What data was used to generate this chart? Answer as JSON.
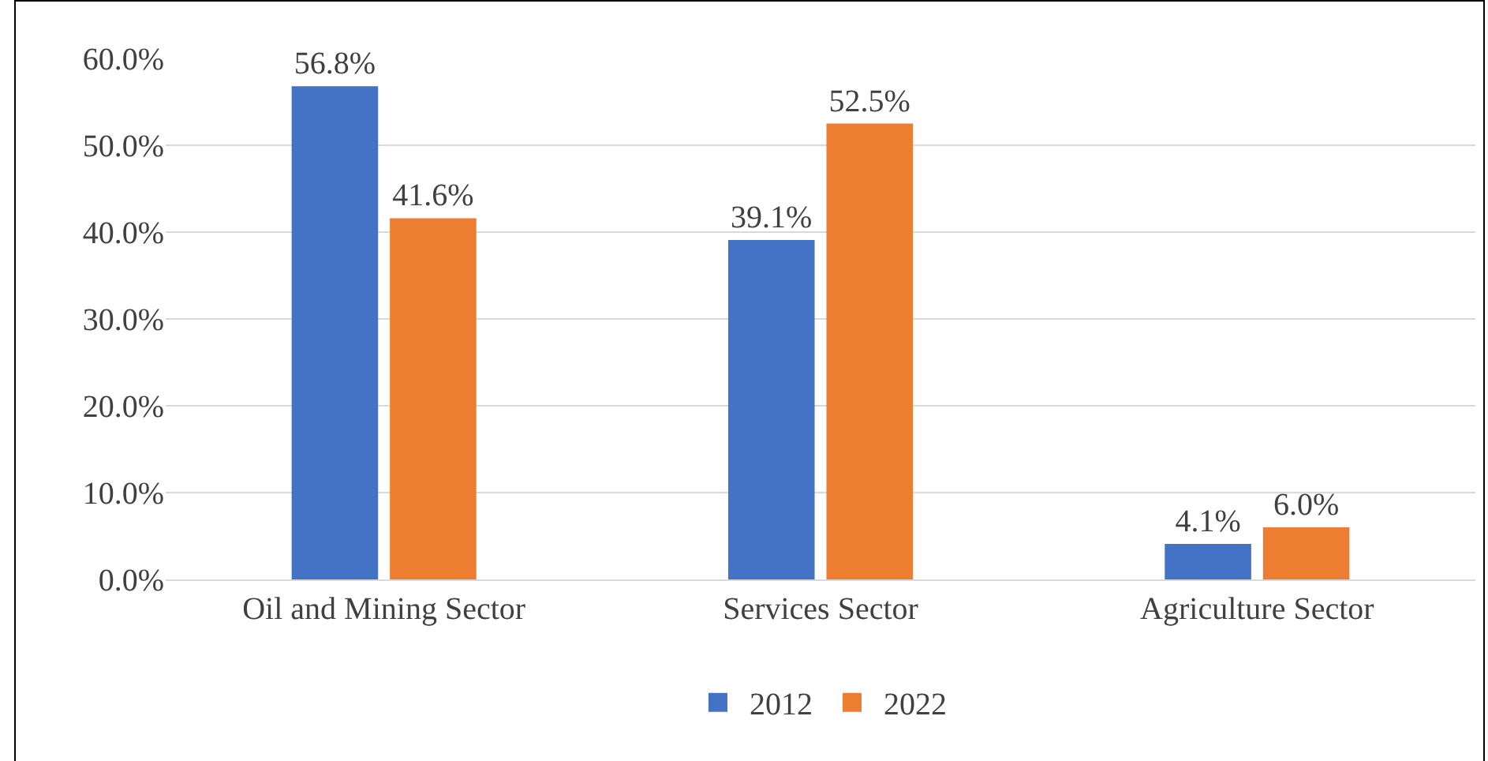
{
  "chart_data": {
    "type": "bar",
    "categories": [
      "Oil and Mining Sector",
      "Services Sector",
      "Agriculture Sector"
    ],
    "series": [
      {
        "name": "2012",
        "color": "#4472c4",
        "values": [
          56.8,
          39.1,
          4.1
        ],
        "value_labels": [
          "56.8%",
          "39.1%",
          "4.1%"
        ]
      },
      {
        "name": "2022",
        "color": "#ed7d31",
        "values": [
          41.6,
          52.5,
          6.0
        ],
        "value_labels": [
          "41.6%",
          "52.5%",
          "6.0%"
        ]
      }
    ],
    "ylim": [
      0,
      60
    ],
    "yticks": [
      {
        "value": 0,
        "label": "0.0%"
      },
      {
        "value": 10,
        "label": "10.0%"
      },
      {
        "value": 20,
        "label": "20.0%"
      },
      {
        "value": 30,
        "label": "30.0%"
      },
      {
        "value": 40,
        "label": "40.0%"
      },
      {
        "value": 50,
        "label": "50.0%"
      },
      {
        "value": 60,
        "label": "60.0%"
      }
    ],
    "grid": "y",
    "legend": "bottom"
  }
}
